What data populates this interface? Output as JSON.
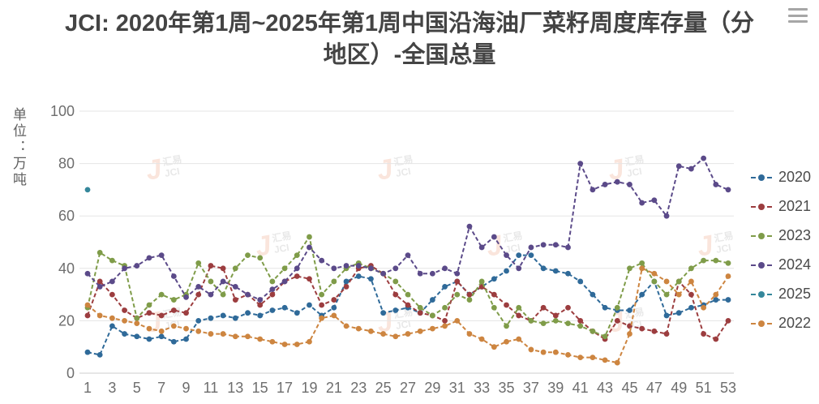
{
  "menu": {
    "icon_name": "hamburger-menu"
  },
  "watermark": {
    "logo_letter": "J",
    "cn": "汇易",
    "en": "JCI"
  },
  "chart_data": {
    "type": "line",
    "title": "JCI: 2020年第1周~2025年第1周中国沿海油厂菜籽周度库存量（分地区）-全国总量",
    "xlabel": "",
    "ylabel": "单位：万吨",
    "x_ticks": [
      1,
      3,
      5,
      7,
      9,
      11,
      13,
      15,
      17,
      19,
      21,
      23,
      25,
      27,
      29,
      31,
      33,
      35,
      37,
      39,
      41,
      43,
      45,
      47,
      49,
      51,
      53
    ],
    "x_range": [
      1,
      53
    ],
    "ylim": [
      0,
      100
    ],
    "y_ticks": [
      0,
      20,
      40,
      60,
      80,
      100
    ],
    "grid": true,
    "legend_position": "right",
    "line_style": "dashed",
    "marker": "circle",
    "series": [
      {
        "name": "2020",
        "color": "#2f6a99",
        "values": [
          8,
          7,
          18,
          15,
          14,
          13,
          14,
          12,
          13,
          20,
          21,
          22,
          21,
          23,
          22,
          24,
          25,
          23,
          26,
          22,
          25,
          35,
          37,
          36,
          23,
          24,
          25,
          23,
          28,
          33,
          35,
          30,
          33,
          36,
          39,
          45,
          45,
          40,
          39,
          38,
          35,
          30,
          25,
          24,
          24,
          30,
          35,
          22,
          23,
          25,
          26,
          28,
          28
        ]
      },
      {
        "name": "2021",
        "color": "#9c3d3f",
        "values": [
          22,
          35,
          30,
          24,
          21,
          23,
          22,
          24,
          23,
          30,
          41,
          40,
          28,
          30,
          26,
          30,
          35,
          37,
          36,
          26,
          28,
          33,
          40,
          41,
          38,
          30,
          26,
          23,
          22,
          20,
          35,
          30,
          33,
          30,
          26,
          22,
          20,
          25,
          22,
          25,
          20,
          16,
          13,
          20,
          18,
          17,
          16,
          15,
          35,
          30,
          15,
          13,
          20
        ]
      },
      {
        "name": "2023",
        "color": "#7f9c49",
        "values": [
          25,
          46,
          43,
          41,
          21,
          26,
          30,
          28,
          30,
          42,
          35,
          30,
          40,
          45,
          44,
          35,
          40,
          45,
          52,
          30,
          35,
          40,
          42,
          40,
          38,
          35,
          30,
          25,
          22,
          25,
          30,
          28,
          35,
          25,
          18,
          25,
          20,
          19,
          20,
          19,
          18,
          16,
          14,
          25,
          40,
          42,
          35,
          30,
          35,
          40,
          43,
          43,
          42
        ]
      },
      {
        "name": "2024",
        "color": "#5b4a89",
        "values": [
          38,
          33,
          35,
          40,
          41,
          44,
          45,
          37,
          29,
          33,
          30,
          35,
          33,
          30,
          28,
          32,
          35,
          40,
          48,
          43,
          40,
          41,
          41,
          40,
          38,
          40,
          45,
          38,
          38,
          40,
          38,
          56,
          48,
          52,
          45,
          40,
          48,
          49,
          49,
          48,
          80,
          70,
          72,
          73,
          72,
          65,
          66,
          60,
          79,
          78,
          82,
          72,
          70
        ]
      },
      {
        "name": "2025",
        "color": "#35879b",
        "values": [
          70
        ]
      },
      {
        "name": "2022",
        "color": "#cd8540",
        "values": [
          26,
          22,
          21,
          20,
          19,
          17,
          16,
          18,
          17,
          16,
          15,
          15,
          14,
          14,
          13,
          12,
          11,
          11,
          12,
          21,
          22,
          18,
          17,
          16,
          15,
          14,
          15,
          16,
          17,
          18,
          20,
          15,
          13,
          10,
          12,
          13,
          9,
          8,
          8,
          7,
          6,
          6,
          5,
          4,
          15,
          40,
          38,
          35,
          30,
          35,
          25,
          30,
          37
        ]
      }
    ]
  }
}
